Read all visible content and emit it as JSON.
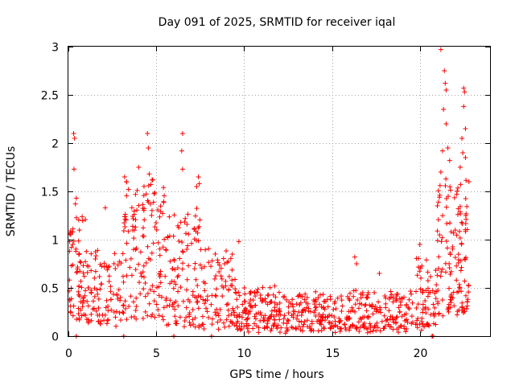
{
  "chart_data": {
    "type": "scatter",
    "title": "Day 091 of 2025, SRMTID for receiver iqal",
    "xlabel": "GPS time / hours",
    "ylabel": "SRMTID / TECUs",
    "xlim": [
      0,
      24
    ],
    "ylim": [
      0,
      3
    ],
    "xticks": [
      0,
      5,
      10,
      15,
      20
    ],
    "xtick_labels": [
      "0",
      "5",
      "10",
      "15",
      "20"
    ],
    "yticks": [
      0,
      0.5,
      1,
      1.5,
      2,
      2.5,
      3
    ],
    "ytick_labels": [
      "0",
      "0.5",
      "1",
      "1.5",
      "2",
      "2.5",
      "3"
    ],
    "grid": true,
    "marker": "+",
    "series": [
      {
        "name": "SRMTID",
        "color": "#ff0000",
        "segments": [
          {
            "x0": 0.0,
            "x1": 1.0,
            "lo": 0.3,
            "hi": 1.3,
            "count": 70
          },
          {
            "x0": 1.0,
            "x1": 3.0,
            "lo": 0.2,
            "hi": 0.9,
            "count": 90
          },
          {
            "x0": 3.0,
            "x1": 5.5,
            "lo": 0.3,
            "hi": 1.6,
            "count": 140
          },
          {
            "x0": 5.5,
            "x1": 7.5,
            "lo": 0.2,
            "hi": 1.3,
            "count": 110
          },
          {
            "x0": 7.5,
            "x1": 9.5,
            "lo": 0.15,
            "hi": 0.9,
            "count": 90
          },
          {
            "x0": 9.5,
            "x1": 12.0,
            "lo": 0.12,
            "hi": 0.5,
            "count": 130
          },
          {
            "x0": 12.0,
            "x1": 17.0,
            "lo": 0.1,
            "hi": 0.45,
            "count": 220
          },
          {
            "x0": 17.0,
            "x1": 19.5,
            "lo": 0.1,
            "hi": 0.45,
            "count": 110
          },
          {
            "x0": 19.5,
            "x1": 21.0,
            "lo": 0.15,
            "hi": 0.8,
            "count": 70
          },
          {
            "x0": 21.0,
            "x1": 22.8,
            "lo": 0.4,
            "hi": 1.6,
            "count": 130
          }
        ],
        "peaks": [
          {
            "x": 0.3,
            "y": 2.1
          },
          {
            "x": 0.35,
            "y": 2.05
          },
          {
            "x": 0.32,
            "y": 1.73
          },
          {
            "x": 0.45,
            "y": 1.43
          },
          {
            "x": 0.4,
            "y": 1.37
          },
          {
            "x": 2.1,
            "y": 1.33
          },
          {
            "x": 3.2,
            "y": 1.65
          },
          {
            "x": 3.3,
            "y": 1.6
          },
          {
            "x": 4.0,
            "y": 1.75
          },
          {
            "x": 4.5,
            "y": 2.1
          },
          {
            "x": 4.55,
            "y": 1.95
          },
          {
            "x": 4.6,
            "y": 1.68
          },
          {
            "x": 4.8,
            "y": 1.62
          },
          {
            "x": 6.5,
            "y": 2.1
          },
          {
            "x": 6.45,
            "y": 1.92
          },
          {
            "x": 6.5,
            "y": 1.73
          },
          {
            "x": 7.4,
            "y": 1.65
          },
          {
            "x": 7.45,
            "y": 1.58
          },
          {
            "x": 7.3,
            "y": 1.55
          },
          {
            "x": 9.7,
            "y": 0.98
          },
          {
            "x": 16.3,
            "y": 0.82
          },
          {
            "x": 16.4,
            "y": 0.75
          },
          {
            "x": 17.7,
            "y": 0.65
          },
          {
            "x": 20.0,
            "y": 0.95
          },
          {
            "x": 21.2,
            "y": 2.97
          },
          {
            "x": 21.4,
            "y": 2.75
          },
          {
            "x": 21.45,
            "y": 2.62
          },
          {
            "x": 21.5,
            "y": 2.55
          },
          {
            "x": 21.35,
            "y": 2.35
          },
          {
            "x": 21.5,
            "y": 2.2
          },
          {
            "x": 21.3,
            "y": 1.92
          },
          {
            "x": 21.6,
            "y": 1.95
          },
          {
            "x": 21.7,
            "y": 1.82
          },
          {
            "x": 22.5,
            "y": 2.57
          },
          {
            "x": 22.55,
            "y": 2.53
          },
          {
            "x": 22.5,
            "y": 2.38
          },
          {
            "x": 22.6,
            "y": 2.15
          },
          {
            "x": 22.4,
            "y": 2.05
          },
          {
            "x": 22.45,
            "y": 1.9
          },
          {
            "x": 22.3,
            "y": 1.75
          },
          {
            "x": 22.6,
            "y": 1.85
          },
          {
            "x": 22.8,
            "y": 1.6
          },
          {
            "x": 21.2,
            "y": 1.7
          },
          {
            "x": 21.0,
            "y": 1.35
          }
        ],
        "zeros": [
          0.45,
          3.15,
          6.0,
          8.15,
          20.7,
          20.75
        ]
      }
    ]
  }
}
